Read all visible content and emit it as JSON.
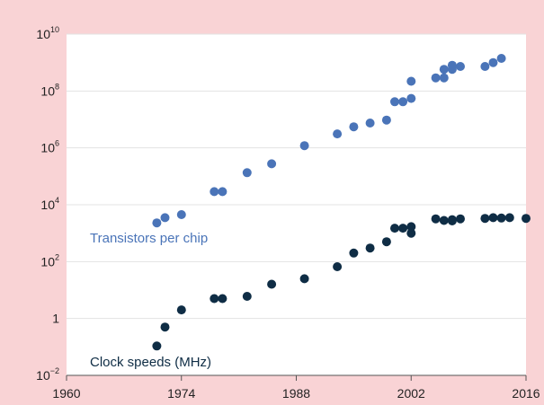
{
  "chart_data": {
    "type": "scatter",
    "y_scale": "log",
    "grid": true,
    "xlim": [
      1960,
      2016
    ],
    "ylim_exponent": [
      -2,
      10
    ],
    "x_ticks": [
      {
        "value": 1960,
        "label": "1960"
      },
      {
        "value": 1974,
        "label": "1974"
      },
      {
        "value": 1988,
        "label": "1988"
      },
      {
        "value": 2002,
        "label": "2002"
      },
      {
        "value": 2016,
        "label": "2016"
      }
    ],
    "y_ticks": [
      {
        "exp": 10,
        "base": "10",
        "sup": "10"
      },
      {
        "exp": 8,
        "base": "10",
        "sup": "8"
      },
      {
        "exp": 6,
        "base": "10",
        "sup": "6"
      },
      {
        "exp": 4,
        "base": "10",
        "sup": "4"
      },
      {
        "exp": 2,
        "base": "10",
        "sup": "2"
      },
      {
        "exp": 0,
        "base": "1",
        "sup": ""
      },
      {
        "exp": -2,
        "base": "10",
        "sup": "−2"
      }
    ],
    "series": [
      {
        "name": "Transistors per chip",
        "color": "#4a74b8",
        "points": [
          [
            1971,
            2300
          ],
          [
            1972,
            3500
          ],
          [
            1974,
            4500
          ],
          [
            1978,
            29000
          ],
          [
            1979,
            29000
          ],
          [
            1982,
            134000
          ],
          [
            1985,
            275000
          ],
          [
            1989,
            1200000
          ],
          [
            1993,
            3100000
          ],
          [
            1995,
            5500000
          ],
          [
            1997,
            7500000
          ],
          [
            1999,
            9500000
          ],
          [
            2000,
            42000000
          ],
          [
            2001,
            42000000
          ],
          [
            2002,
            55000000
          ],
          [
            2002,
            220000000
          ],
          [
            2005,
            290000000
          ],
          [
            2006,
            290000000
          ],
          [
            2006,
            580000000
          ],
          [
            2007,
            800000000
          ],
          [
            2007,
            580000000
          ],
          [
            2008,
            730000000
          ],
          [
            2011,
            730000000
          ],
          [
            2012,
            1000000000
          ],
          [
            2013,
            1400000000
          ]
        ]
      },
      {
        "name": "Clock speeds (MHz)",
        "color": "#0f2d45",
        "points": [
          [
            1971,
            0.108
          ],
          [
            1972,
            0.5
          ],
          [
            1974,
            2
          ],
          [
            1978,
            5
          ],
          [
            1979,
            5
          ],
          [
            1982,
            6
          ],
          [
            1985,
            16
          ],
          [
            1989,
            25
          ],
          [
            1993,
            66
          ],
          [
            1995,
            200
          ],
          [
            1997,
            300
          ],
          [
            1999,
            500
          ],
          [
            2000,
            1500
          ],
          [
            2001,
            1500
          ],
          [
            2002,
            1000
          ],
          [
            2002,
            1700
          ],
          [
            2005,
            3200
          ],
          [
            2006,
            2800
          ],
          [
            2007,
            3000
          ],
          [
            2007,
            2700
          ],
          [
            2008,
            3200
          ],
          [
            2011,
            3300
          ],
          [
            2012,
            3500
          ],
          [
            2013,
            3400
          ],
          [
            2014,
            3500
          ],
          [
            2016,
            3300
          ]
        ]
      }
    ]
  }
}
